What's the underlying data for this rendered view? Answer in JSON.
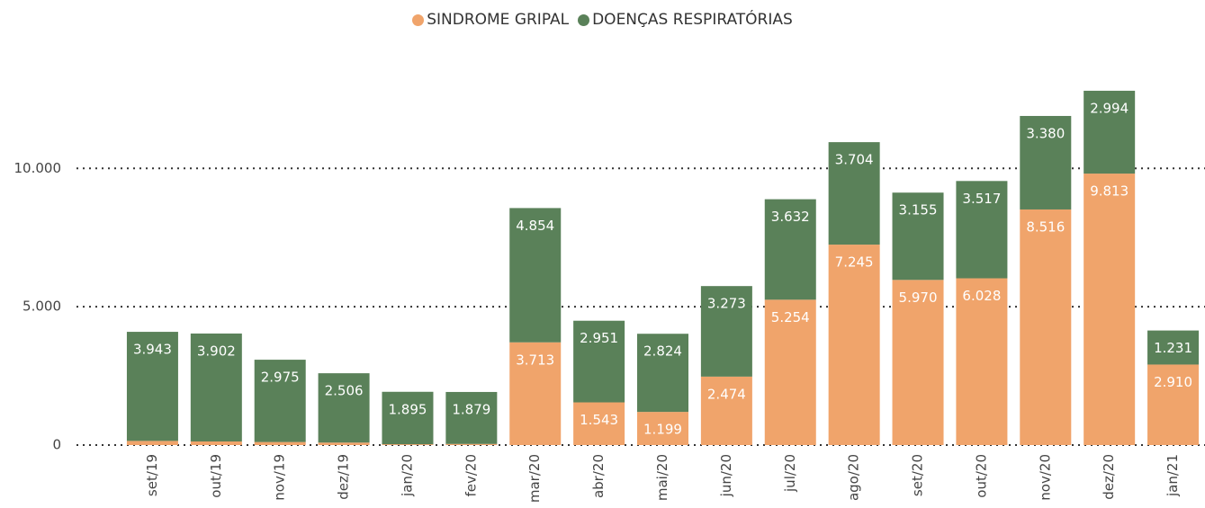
{
  "chart_data": {
    "type": "stacked-bar",
    "categories": [
      "set/19",
      "out/19",
      "nov/19",
      "dez/19",
      "jan/20",
      "fev/20",
      "mar/20",
      "abr/20",
      "mai/20",
      "jun/20",
      "jul/20",
      "ago/20",
      "set/20",
      "out/20",
      "nov/20",
      "dez/20",
      "jan/21"
    ],
    "series": [
      {
        "name": "SINDROME GRIPAL",
        "color": "#f0a46b",
        "values": [
          150,
          130,
          110,
          90,
          30,
          40,
          3713,
          1543,
          1199,
          2474,
          5254,
          7245,
          5970,
          6028,
          8516,
          9813,
          2910
        ],
        "value_labels": [
          null,
          null,
          null,
          null,
          null,
          null,
          "3.713",
          "1.543",
          "1.199",
          "2.474",
          "5.254",
          "7.245",
          "5.970",
          "6.028",
          "8.516",
          "9.813",
          "2.910"
        ]
      },
      {
        "name": "DOENÇAS RESPIRATÓRIAS",
        "color": "#5a8159",
        "values": [
          3943,
          3902,
          2975,
          2506,
          1895,
          1879,
          4854,
          2951,
          2824,
          3273,
          3632,
          3704,
          3155,
          3517,
          3380,
          2994,
          1231
        ],
        "value_labels": [
          "3.943",
          "3.902",
          "2.975",
          "2.506",
          "1.895",
          "1.879",
          "4.854",
          "2.951",
          "2.824",
          "3.273",
          "3.632",
          "3.704",
          "3.155",
          "3.517",
          "3.380",
          "2.994",
          "1.231"
        ]
      }
    ],
    "ylim": [
      0,
      13000
    ],
    "yticks": [
      0,
      {
        "value": 5000,
        "label": "5.000"
      },
      {
        "value": 10000,
        "label": "10.000"
      }
    ],
    "grid": true
  }
}
